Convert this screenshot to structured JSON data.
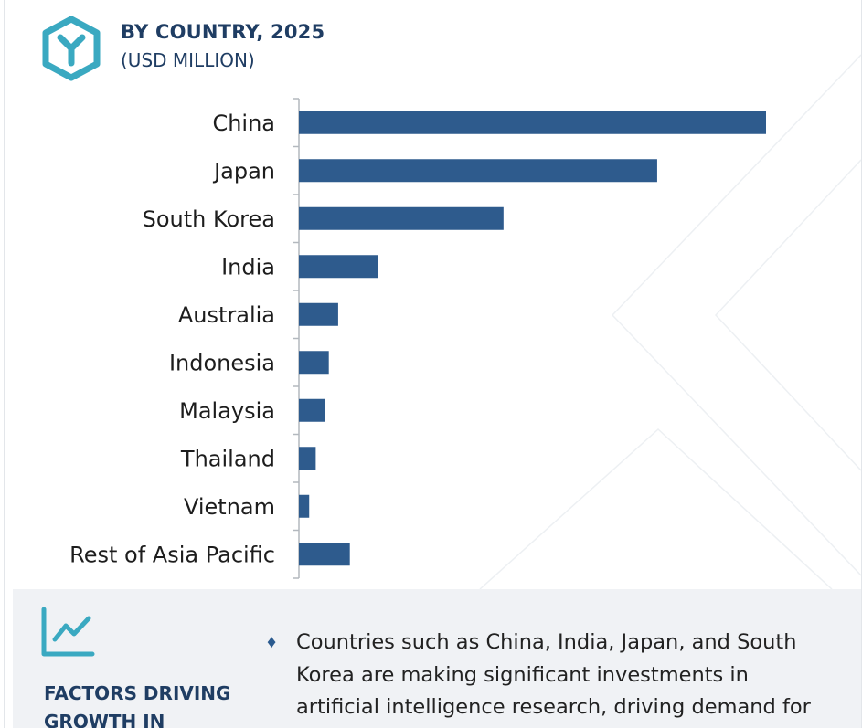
{
  "header": {
    "logo_icon": "hexagon-y-logo-icon",
    "title": "BY COUNTRY, 2025",
    "subtitle": "(USD MILLION)"
  },
  "chart_data": {
    "type": "bar",
    "orientation": "horizontal",
    "title": "BY COUNTRY, 2025",
    "subtitle": "(USD MILLION)",
    "categories": [
      "China",
      "Japan",
      "South Korea",
      "India",
      "Australia",
      "Indonesia",
      "Malaysia",
      "Thailand",
      "Vietnam",
      "Rest of Asia Pacific"
    ],
    "values": [
      100,
      76.7,
      43.8,
      16.9,
      8.4,
      6.4,
      5.6,
      3.6,
      2.2,
      10.9
    ],
    "xlim": [
      0,
      100
    ],
    "value_note": "relative bar lengths; no value axis or data labels shown",
    "grid": false,
    "legend": "none",
    "bar_color": "#2e5b8d"
  },
  "factors": {
    "icon": "trend-chart-icon",
    "title": "FACTORS DRIVING GROWTH IN",
    "bullet_marker": "♦",
    "bullet_text": "Countries such as China, India, Japan, and South Korea are making significant investments in artificial intelligence research, driving demand for"
  },
  "colors": {
    "accent": "#2e5b8d",
    "heading": "#1f3d63",
    "logo": "#3aa9c1",
    "panel_bg": "#f0f2f5"
  }
}
